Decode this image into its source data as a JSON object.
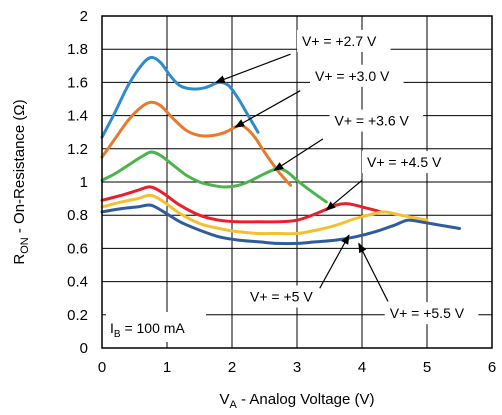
{
  "chart_data": {
    "type": "line",
    "xlabel": {
      "main": "V",
      "sub": "A",
      "rest": " - Analog Voltage (V)"
    },
    "ylabel": {
      "main": "R",
      "sub": "ON",
      "rest": " - On-Resistance (Ω)"
    },
    "xlim": [
      0,
      6
    ],
    "ylim": [
      0,
      2
    ],
    "xticks": [
      "0",
      "1",
      "2",
      "3",
      "4",
      "5",
      "6"
    ],
    "yticks": [
      "0",
      "0.2",
      "0.4",
      "0.6",
      "0.8",
      "1",
      "1.2",
      "1.4",
      "1.6",
      "1.8",
      "2"
    ],
    "grid": true,
    "note": {
      "main": "I",
      "sub": "B",
      "rest": " = 100 mA"
    },
    "series": [
      {
        "name": "V+ = +2.7 V",
        "color": "#2e8ccc",
        "x": [
          0,
          0.2,
          0.4,
          0.6,
          0.75,
          0.9,
          1.05,
          1.2,
          1.4,
          1.6,
          1.8,
          1.95,
          2.1,
          2.25,
          2.4
        ],
        "y": [
          1.27,
          1.42,
          1.58,
          1.7,
          1.75,
          1.72,
          1.64,
          1.58,
          1.56,
          1.57,
          1.6,
          1.58,
          1.5,
          1.4,
          1.3
        ]
      },
      {
        "name": "V+ = +3.0 V",
        "color": "#e87a2e",
        "x": [
          0,
          0.2,
          0.4,
          0.6,
          0.75,
          0.9,
          1.1,
          1.3,
          1.5,
          1.7,
          1.9,
          2.1,
          2.2,
          2.35,
          2.5,
          2.7,
          2.9
        ],
        "y": [
          1.15,
          1.26,
          1.37,
          1.45,
          1.48,
          1.46,
          1.38,
          1.31,
          1.28,
          1.28,
          1.3,
          1.34,
          1.33,
          1.27,
          1.18,
          1.07,
          0.98
        ]
      },
      {
        "name": "V+ = +3.6 V",
        "color": "#4cb44c",
        "x": [
          0,
          0.2,
          0.4,
          0.6,
          0.75,
          0.9,
          1.1,
          1.3,
          1.5,
          1.7,
          1.9,
          2.1,
          2.3,
          2.5,
          2.7,
          2.85,
          3.0,
          3.2,
          3.45
        ],
        "y": [
          1.01,
          1.05,
          1.1,
          1.15,
          1.18,
          1.16,
          1.1,
          1.04,
          1.0,
          0.98,
          0.97,
          0.98,
          1.01,
          1.05,
          1.08,
          1.06,
          1.01,
          0.95,
          0.88
        ]
      },
      {
        "name": "V+ = +4.5 V",
        "color": "#e8202a",
        "x": [
          0,
          0.3,
          0.55,
          0.75,
          0.95,
          1.2,
          1.5,
          1.8,
          2.1,
          2.4,
          2.7,
          3.0,
          3.3,
          3.6,
          3.75,
          3.9,
          4.1,
          4.3
        ],
        "y": [
          0.89,
          0.92,
          0.95,
          0.97,
          0.93,
          0.86,
          0.8,
          0.77,
          0.76,
          0.76,
          0.76,
          0.77,
          0.81,
          0.86,
          0.87,
          0.86,
          0.84,
          0.82
        ]
      },
      {
        "name": "V+ = +5 V",
        "color": "#f5c030",
        "x": [
          0,
          0.3,
          0.55,
          0.75,
          0.95,
          1.2,
          1.5,
          1.8,
          2.1,
          2.4,
          2.7,
          3.0,
          3.3,
          3.6,
          3.9,
          4.2,
          4.35,
          4.6,
          5.0
        ],
        "y": [
          0.85,
          0.88,
          0.9,
          0.92,
          0.88,
          0.81,
          0.75,
          0.72,
          0.7,
          0.69,
          0.69,
          0.69,
          0.71,
          0.74,
          0.78,
          0.81,
          0.82,
          0.8,
          0.77
        ]
      },
      {
        "name": "V+ = +5.5 V",
        "color": "#2e5c9e",
        "x": [
          0,
          0.3,
          0.55,
          0.75,
          0.95,
          1.2,
          1.5,
          1.8,
          2.1,
          2.4,
          2.7,
          3.0,
          3.3,
          3.6,
          3.9,
          4.2,
          4.5,
          4.7,
          4.9,
          5.2,
          5.5
        ],
        "y": [
          0.82,
          0.84,
          0.85,
          0.86,
          0.82,
          0.76,
          0.71,
          0.67,
          0.65,
          0.64,
          0.63,
          0.63,
          0.64,
          0.65,
          0.67,
          0.7,
          0.74,
          0.77,
          0.76,
          0.74,
          0.72
        ]
      }
    ],
    "annotations": [
      {
        "text": "V+ = +2.7 V",
        "box": [
          3.0,
          1.85
        ],
        "arrow_from": [
          2.9,
          1.77
        ],
        "arrow_to": [
          1.75,
          1.6
        ]
      },
      {
        "text": "V+ = +3.0 V",
        "box": [
          3.2,
          1.64
        ],
        "arrow_from": [
          3.05,
          1.55
        ],
        "arrow_to": [
          2.05,
          1.33
        ]
      },
      {
        "text": "V+ = +3.6 V",
        "box": [
          3.5,
          1.37
        ],
        "arrow_from": [
          3.4,
          1.26
        ],
        "arrow_to": [
          2.65,
          1.07
        ]
      },
      {
        "text": "V+ = +4.5 V",
        "box": [
          4.0,
          1.12
        ],
        "arrow_from": [
          4.0,
          1.01
        ],
        "arrow_to": [
          3.45,
          0.83
        ]
      },
      {
        "text": "V+ = +5 V",
        "box": [
          2.2,
          0.31
        ],
        "arrow_from": [
          3.35,
          0.36
        ],
        "arrow_to": [
          3.8,
          0.68
        ]
      },
      {
        "text": "V+ = +5.5 V",
        "box": [
          4.35,
          0.21
        ],
        "arrow_from": [
          4.4,
          0.28
        ],
        "arrow_to": [
          3.95,
          0.63
        ]
      }
    ]
  }
}
